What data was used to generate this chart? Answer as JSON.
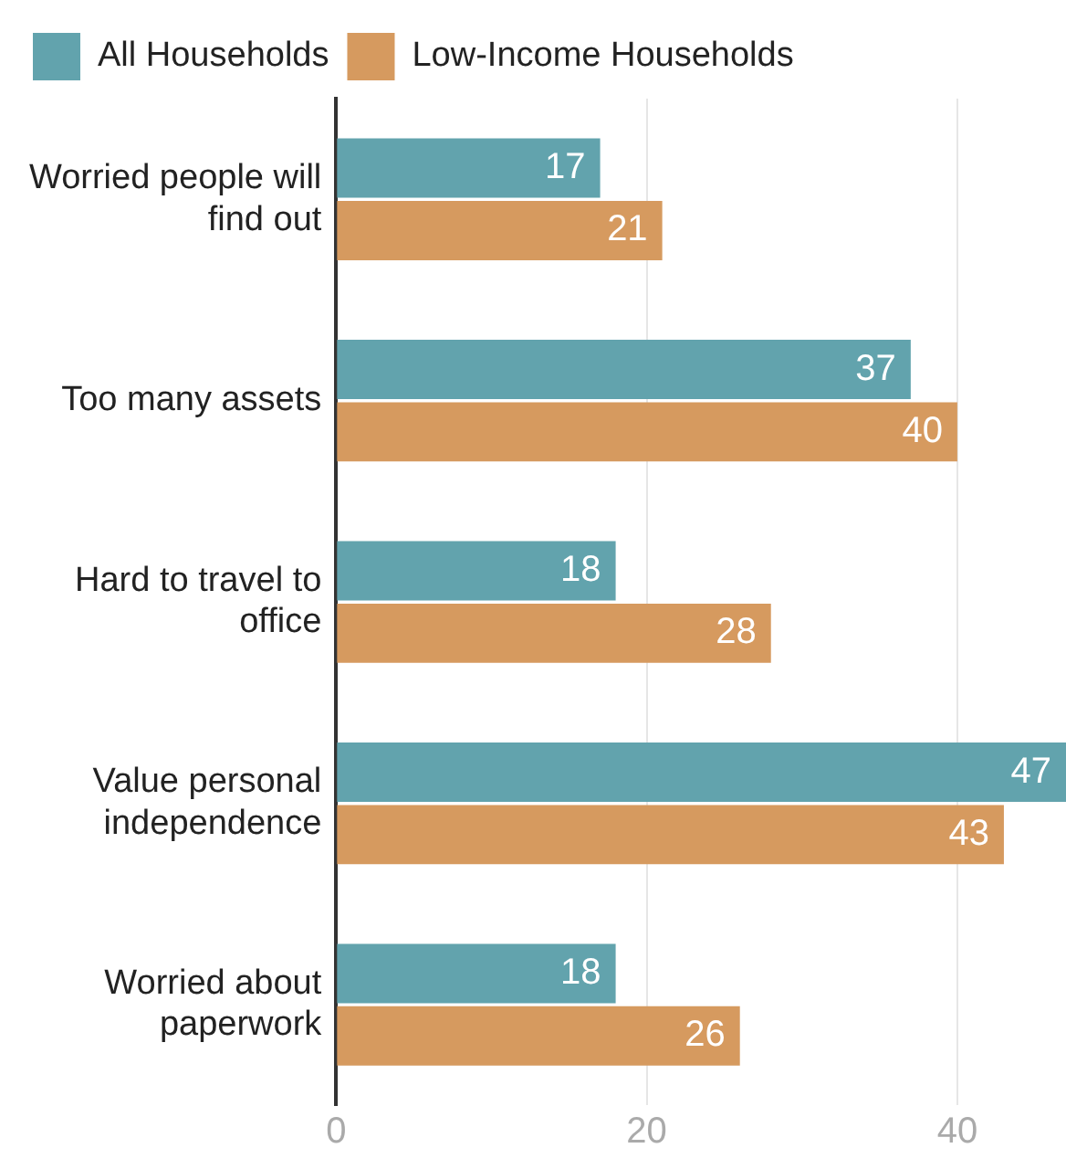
{
  "chart_data": {
    "type": "bar",
    "orientation": "horizontal",
    "categories": [
      "Worried people will find out",
      "Too many assets",
      "Hard to travel to office",
      "Value personal independence",
      "Worried about paperwork"
    ],
    "series": [
      {
        "name": "All Households",
        "color": "#62a3ad",
        "values": [
          17,
          37,
          18,
          47,
          18
        ]
      },
      {
        "name": "Low-Income Households",
        "color": "#d69a5f",
        "values": [
          21,
          40,
          28,
          43,
          26
        ]
      }
    ],
    "xlim": [
      0,
      47
    ],
    "xticks": [
      0,
      20,
      40
    ],
    "grid": "x",
    "legend": "top left",
    "data_labels": true
  }
}
